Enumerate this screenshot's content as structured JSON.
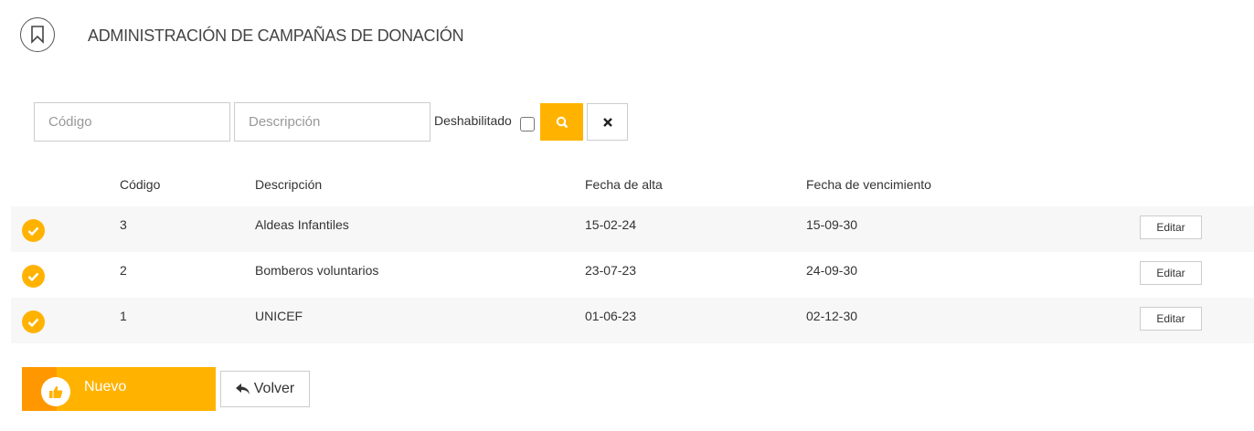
{
  "header": {
    "title": "ADMINISTRACIÓN DE CAMPAÑAS DE DONACIÓN",
    "icon": "bookmark-icon"
  },
  "filters": {
    "codigo_placeholder": "Código",
    "codigo_value": "",
    "descripcion_placeholder": "Descripción",
    "descripcion_value": "",
    "deshabilitado_label": "Deshabilitado",
    "deshabilitado_checked": false,
    "search_icon": "search-icon",
    "clear_icon": "close-icon"
  },
  "table": {
    "columns": [
      "Código",
      "Descripción",
      "Fecha de alta",
      "Fecha de vencimiento"
    ],
    "rows": [
      {
        "status": "check-circle-icon",
        "codigo": "3",
        "descripcion": "Aldeas Infantiles",
        "alta": "15-02-24",
        "vencimiento": "15-09-30",
        "action": "Editar"
      },
      {
        "status": "check-circle-icon",
        "codigo": "2",
        "descripcion": "Bomberos voluntarios",
        "alta": "23-07-23",
        "vencimiento": "24-09-30",
        "action": "Editar"
      },
      {
        "status": "check-circle-icon",
        "codigo": "1",
        "descripcion": "UNICEF",
        "alta": "01-06-23",
        "vencimiento": "02-12-30",
        "action": "Editar"
      }
    ]
  },
  "actions": {
    "nuevo": "Nuevo",
    "volver": "Volver"
  },
  "colors": {
    "accent": "#ffb300",
    "accent_dark": "#ff9800"
  }
}
